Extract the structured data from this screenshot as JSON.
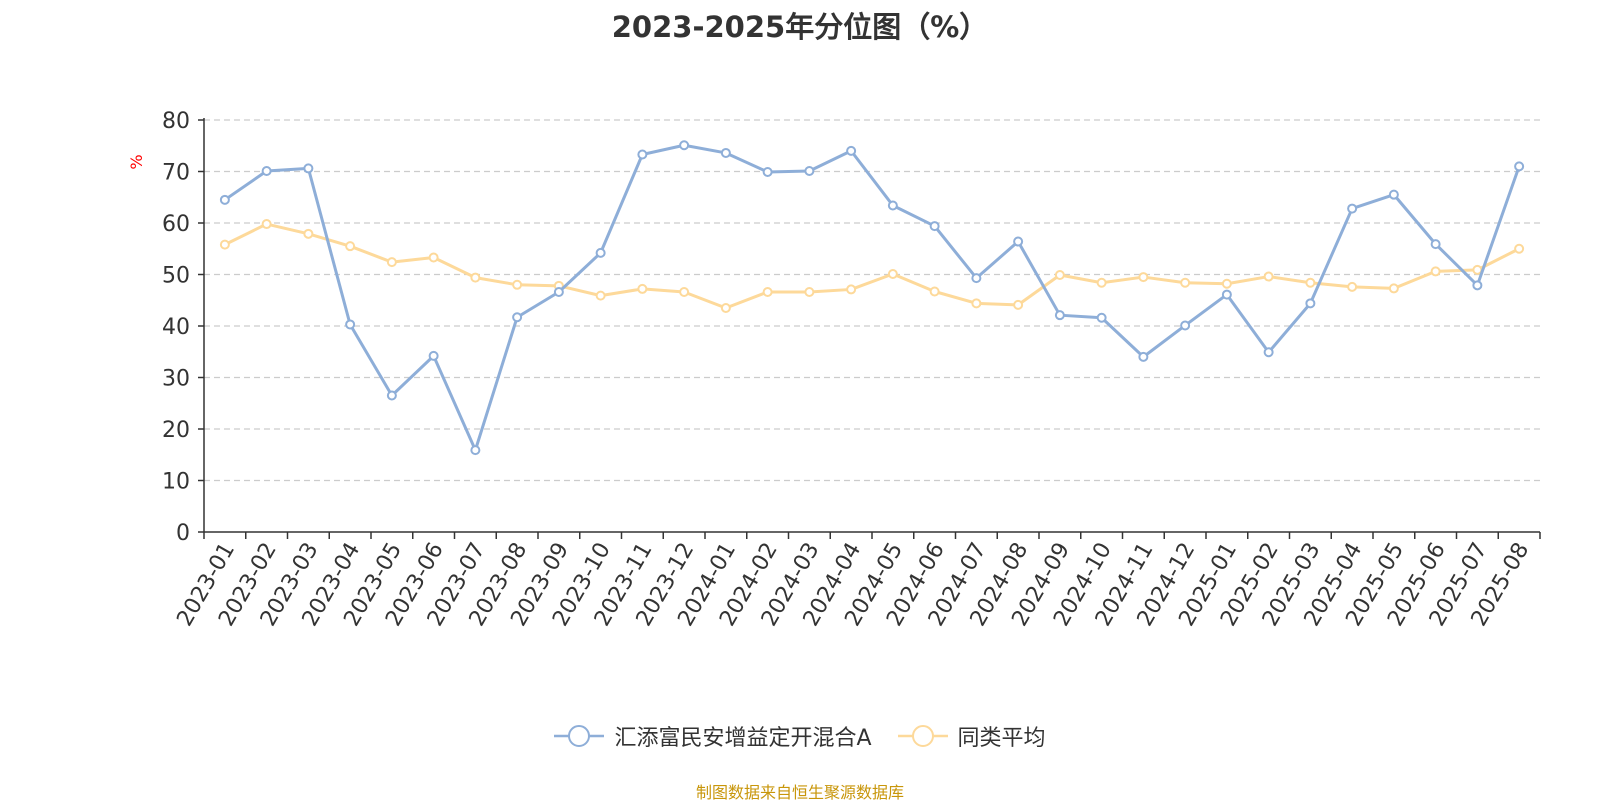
{
  "colors": {
    "fund": "#8eaed8",
    "peer": "#fdd99a",
    "axis": "#333333",
    "grid": "#cccccc",
    "unit": "#ff0000",
    "source": "#c8960a"
  },
  "legend": {
    "fund_label": "汇添富民安增益定开混合A",
    "peer_label": "同类平均"
  },
  "source_note": "制图数据来自恒生聚源数据库",
  "chart_data": {
    "type": "line",
    "title": "2023-2025年分位图（%）",
    "ylabel": "%",
    "ylim": [
      0,
      80
    ],
    "yticks": [
      0,
      10,
      20,
      30,
      40,
      50,
      60,
      70,
      80
    ],
    "grid": true,
    "legend_position": "bottom",
    "categories": [
      "2023-01",
      "2023-02",
      "2023-03",
      "2023-04",
      "2023-05",
      "2023-06",
      "2023-07",
      "2023-08",
      "2023-09",
      "2023-10",
      "2023-11",
      "2023-12",
      "2024-01",
      "2024-02",
      "2024-03",
      "2024-04",
      "2024-05",
      "2024-06",
      "2024-07",
      "2024-08",
      "2024-09",
      "2024-10",
      "2024-11",
      "2024-12",
      "2025-01",
      "2025-02",
      "2025-03",
      "2025-04",
      "2025-05",
      "2025-06",
      "2025-07",
      "2025-08"
    ],
    "series": [
      {
        "name": "汇添富民安增益定开混合A",
        "values": [
          64.5,
          70.1,
          70.6,
          40.3,
          26.5,
          34.2,
          15.9,
          41.7,
          46.6,
          54.2,
          73.3,
          75.1,
          73.6,
          69.9,
          70.1,
          74.0,
          63.4,
          59.4,
          49.3,
          56.4,
          42.1,
          41.6,
          34.0,
          40.1,
          46.1,
          34.9,
          44.4,
          62.8,
          65.5,
          55.9,
          47.9,
          71.0
        ]
      },
      {
        "name": "同类平均",
        "values": [
          55.8,
          59.8,
          57.9,
          55.5,
          52.4,
          53.3,
          49.4,
          48.0,
          47.8,
          45.9,
          47.2,
          46.6,
          43.5,
          46.6,
          46.6,
          47.1,
          50.1,
          46.7,
          44.4,
          44.1,
          49.9,
          48.4,
          49.5,
          48.4,
          48.2,
          49.6,
          48.4,
          47.6,
          47.3,
          50.6,
          50.9,
          55.0
        ]
      }
    ]
  }
}
